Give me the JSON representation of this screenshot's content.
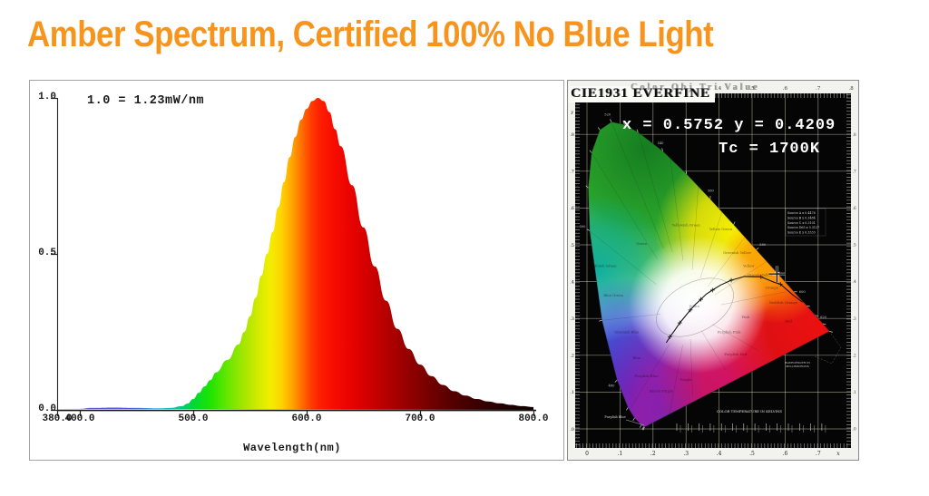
{
  "page": {
    "title": "Amber Spectrum, Certified 100% No Blue Light",
    "title_color": "#F7941E"
  },
  "chart_data": [
    {
      "type": "area",
      "name": "amber-led-spectral-power-distribution",
      "annotation": "1.0 = 1.23mW/nm",
      "xlabel": "Wavelength(nm)",
      "xlim": [
        380,
        800
      ],
      "ylim": [
        0,
        1
      ],
      "grid": false,
      "peak_nm": 610,
      "x_ticks": [
        {
          "value": 380,
          "label": "380.0"
        },
        {
          "value": 400,
          "label": "400.0"
        },
        {
          "value": 500,
          "label": "500.0"
        },
        {
          "value": 600,
          "label": "600.0"
        },
        {
          "value": 700,
          "label": "700.0"
        },
        {
          "value": 800,
          "label": "800.0"
        }
      ],
      "y_ticks": [
        {
          "value": 1.0,
          "label": "1.0"
        },
        {
          "value": 0.5,
          "label": "0.5"
        },
        {
          "value": 0.0,
          "label": "0.0"
        }
      ],
      "series": [
        {
          "name": "relative spectral power",
          "x": [
            380,
            400,
            410,
            430,
            450,
            470,
            480,
            490,
            495,
            500,
            505,
            510,
            515,
            520,
            530,
            540,
            545,
            550,
            555,
            560,
            565,
            570,
            575,
            580,
            585,
            590,
            595,
            600,
            605,
            610,
            615,
            620,
            625,
            630,
            640,
            650,
            660,
            670,
            680,
            690,
            700,
            710,
            720,
            730,
            740,
            750,
            760,
            770,
            780,
            790,
            800
          ],
          "y": [
            0.004,
            0.004,
            0.006,
            0.007,
            0.006,
            0.005,
            0.006,
            0.012,
            0.02,
            0.035,
            0.055,
            0.075,
            0.095,
            0.12,
            0.16,
            0.21,
            0.25,
            0.3,
            0.36,
            0.43,
            0.5,
            0.57,
            0.65,
            0.73,
            0.81,
            0.875,
            0.93,
            0.965,
            0.99,
            1.0,
            0.99,
            0.955,
            0.9,
            0.845,
            0.72,
            0.585,
            0.46,
            0.35,
            0.26,
            0.195,
            0.145,
            0.108,
            0.08,
            0.06,
            0.046,
            0.035,
            0.027,
            0.021,
            0.016,
            0.012,
            0.009
          ]
        }
      ],
      "spectral_colors": [
        {
          "nm": 380,
          "color": "#0a0a96"
        },
        {
          "nm": 415,
          "color": "#1c1cd2"
        },
        {
          "nm": 445,
          "color": "#2832e6"
        },
        {
          "nm": 468,
          "color": "#00aadc"
        },
        {
          "nm": 487,
          "color": "#00c88c"
        },
        {
          "nm": 500,
          "color": "#00d836"
        },
        {
          "nm": 515,
          "color": "#1ee400"
        },
        {
          "nm": 530,
          "color": "#66e600"
        },
        {
          "nm": 545,
          "color": "#a6e600"
        },
        {
          "nm": 558,
          "color": "#d6ea00"
        },
        {
          "nm": 568,
          "color": "#f2ee00"
        },
        {
          "nm": 578,
          "color": "#ffd200"
        },
        {
          "nm": 588,
          "color": "#ffa000"
        },
        {
          "nm": 596,
          "color": "#ff6c00"
        },
        {
          "nm": 604,
          "color": "#ff3c00"
        },
        {
          "nm": 612,
          "color": "#fe1e00"
        },
        {
          "nm": 624,
          "color": "#f80c00"
        },
        {
          "nm": 637,
          "color": "#ea0400"
        },
        {
          "nm": 650,
          "color": "#d80000"
        },
        {
          "nm": 664,
          "color": "#c00000"
        },
        {
          "nm": 680,
          "color": "#a40000"
        },
        {
          "nm": 698,
          "color": "#860000"
        },
        {
          "nm": 718,
          "color": "#640000"
        },
        {
          "nm": 738,
          "color": "#480000"
        },
        {
          "nm": 760,
          "color": "#300000"
        },
        {
          "nm": 780,
          "color": "#1e0000"
        },
        {
          "nm": 800,
          "color": "#120000"
        }
      ]
    },
    {
      "type": "scatter",
      "name": "cie-1931-chromaticity-diagram",
      "title": "CIE1931 EVERFINE",
      "ghost_text": "Color Obj Tri Value",
      "readout_xy": "x = 0.5752 y = 0.4209",
      "readout_tc": "Tc = 1700K",
      "point": {
        "x": 0.5752,
        "y": 0.4209,
        "tc": "1700K"
      },
      "xlim": [
        0,
        0.8
      ],
      "ylim": [
        0,
        0.9
      ],
      "x_axis_symbol": "x",
      "y_axis_symbol": "y",
      "x_tick_labels": [
        "0",
        ".1",
        ".2",
        ".3",
        ".4",
        ".5",
        ".6",
        ".7"
      ],
      "top_tick_labels": [
        ".4",
        ".5",
        ".6",
        ".7",
        ".8"
      ],
      "y_tick_labels": [
        ".8",
        ".7",
        ".6",
        ".5",
        ".4",
        ".3",
        ".2",
        ".1",
        ".0"
      ],
      "kelvin_scale_label": "COLOR TEMPERATURE IN KELVINS",
      "wavelength_note": [
        "WAVELENGTH IN",
        "MILLIMICRONS"
      ],
      "purple_tip_label": "Purplish Blue",
      "illuminant_table": [
        "Source A x 0.4476",
        "Source B x 0.3484",
        "Source C x 0.3101",
        "Source D65 x 0.3127",
        "Source E x 0.3333"
      ],
      "spectral_locus": [
        [
          380,
          0.1741,
          0.005
        ],
        [
          420,
          0.1714,
          0.0051
        ],
        [
          440,
          0.1644,
          0.0109
        ],
        [
          460,
          0.144,
          0.0297
        ],
        [
          470,
          0.1241,
          0.0578
        ],
        [
          480,
          0.0913,
          0.1327
        ],
        [
          490,
          0.0454,
          0.295
        ],
        [
          500,
          0.0082,
          0.5384
        ],
        [
          505,
          0.0039,
          0.6548
        ],
        [
          510,
          0.0139,
          0.7502
        ],
        [
          515,
          0.0389,
          0.812
        ],
        [
          520,
          0.0743,
          0.8338
        ],
        [
          525,
          0.1142,
          0.8262
        ],
        [
          530,
          0.1547,
          0.8059
        ],
        [
          540,
          0.2296,
          0.7543
        ],
        [
          550,
          0.3016,
          0.6923
        ],
        [
          560,
          0.3731,
          0.6245
        ],
        [
          570,
          0.4441,
          0.5547
        ],
        [
          580,
          0.5125,
          0.4866
        ],
        [
          590,
          0.5752,
          0.4242
        ],
        [
          600,
          0.627,
          0.3725
        ],
        [
          610,
          0.6658,
          0.334
        ],
        [
          620,
          0.6915,
          0.3083
        ],
        [
          635,
          0.714,
          0.2859
        ],
        [
          700,
          0.7347,
          0.2653
        ]
      ],
      "wavelength_tick_labels": [
        480,
        500,
        520,
        540,
        560,
        580,
        600,
        620
      ],
      "planckian_locus": [
        [
          0.653,
          0.344
        ],
        [
          0.622,
          0.365
        ],
        [
          0.586,
          0.393
        ],
        [
          0.567,
          0.398
        ],
        [
          0.527,
          0.413
        ],
        [
          0.477,
          0.414
        ],
        [
          0.437,
          0.404
        ],
        [
          0.405,
          0.391
        ],
        [
          0.38,
          0.377
        ],
        [
          0.361,
          0.366
        ],
        [
          0.345,
          0.352
        ],
        [
          0.329,
          0.339
        ],
        [
          0.313,
          0.323
        ],
        [
          0.294,
          0.302
        ],
        [
          0.281,
          0.288
        ],
        [
          0.266,
          0.268
        ],
        [
          0.251,
          0.25
        ],
        [
          0.24,
          0.234
        ]
      ],
      "region_labels": [
        {
          "t": "Green",
          "x": 0.165,
          "y": 0.5
        },
        {
          "t": "Yellowish Green",
          "x": 0.3,
          "y": 0.55
        },
        {
          "t": "Yellow Green",
          "x": 0.405,
          "y": 0.54
        },
        {
          "t": "Greenish Yellow",
          "x": 0.455,
          "y": 0.475
        },
        {
          "t": "Yellow",
          "x": 0.49,
          "y": 0.44
        },
        {
          "t": "Orange Yellow",
          "x": 0.525,
          "y": 0.415
        },
        {
          "t": "Orange",
          "x": 0.56,
          "y": 0.38
        },
        {
          "t": "Reddish Orange",
          "x": 0.595,
          "y": 0.34
        },
        {
          "t": "Red",
          "x": 0.61,
          "y": 0.29
        },
        {
          "t": "Pink",
          "x": 0.48,
          "y": 0.3
        },
        {
          "t": "Purplish Pink",
          "x": 0.43,
          "y": 0.26
        },
        {
          "t": "Purplish Red",
          "x": 0.45,
          "y": 0.2
        },
        {
          "t": "Purple",
          "x": 0.3,
          "y": 0.13
        },
        {
          "t": "Bluish Purple",
          "x": 0.225,
          "y": 0.1
        },
        {
          "t": "Purplish Blue",
          "x": 0.18,
          "y": 0.14
        },
        {
          "t": "Blue",
          "x": 0.15,
          "y": 0.19
        },
        {
          "t": "Greenish Blue",
          "x": 0.12,
          "y": 0.26
        },
        {
          "t": "Blue Green",
          "x": 0.08,
          "y": 0.36
        },
        {
          "t": "Bluish Green",
          "x": 0.055,
          "y": 0.44
        },
        {
          "t": "White",
          "x": 0.325,
          "y": 0.33
        }
      ]
    }
  ]
}
